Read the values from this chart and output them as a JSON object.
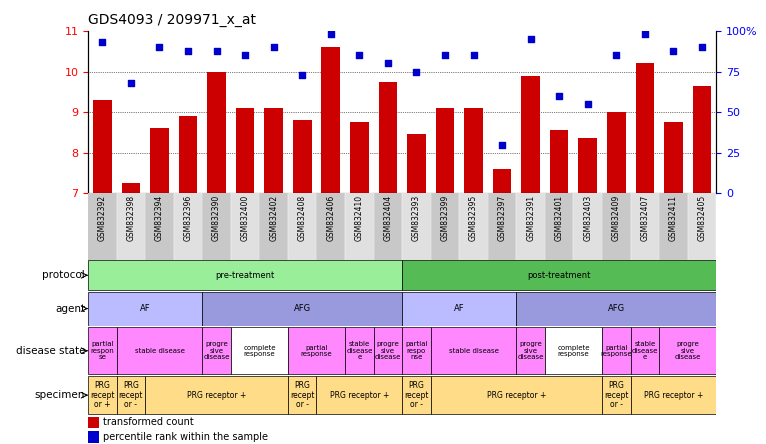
{
  "title": "GDS4093 / 209971_x_at",
  "samples": [
    "GSM832392",
    "GSM832398",
    "GSM832394",
    "GSM832396",
    "GSM832390",
    "GSM832400",
    "GSM832402",
    "GSM832408",
    "GSM832406",
    "GSM832410",
    "GSM832404",
    "GSM832393",
    "GSM832399",
    "GSM832395",
    "GSM832397",
    "GSM832391",
    "GSM832401",
    "GSM832403",
    "GSM832409",
    "GSM832407",
    "GSM832411",
    "GSM832405"
  ],
  "bar_values": [
    9.3,
    7.25,
    8.6,
    8.9,
    10.0,
    9.1,
    9.1,
    8.8,
    10.6,
    8.75,
    9.75,
    8.45,
    9.1,
    9.1,
    7.6,
    9.9,
    8.55,
    8.35,
    9.0,
    10.2,
    8.75,
    9.65
  ],
  "dot_values": [
    93,
    68,
    90,
    88,
    88,
    85,
    90,
    73,
    98,
    85,
    80,
    75,
    85,
    85,
    30,
    95,
    60,
    55,
    85,
    98,
    88,
    90
  ],
  "ylim_left": [
    7,
    11
  ],
  "ylim_right": [
    0,
    100
  ],
  "yticks_left": [
    7,
    8,
    9,
    10,
    11
  ],
  "yticks_right": [
    0,
    25,
    50,
    75,
    100
  ],
  "ytick_right_labels": [
    "0",
    "25",
    "50",
    "75",
    "100%"
  ],
  "bar_color": "#CC0000",
  "dot_color": "#0000CC",
  "bg_color": "#ffffff",
  "protocol_row": {
    "label": "protocol",
    "segments": [
      {
        "text": "pre-treatment",
        "start": 0,
        "end": 10,
        "color": "#99EE99"
      },
      {
        "text": "post-treatment",
        "start": 11,
        "end": 21,
        "color": "#55BB55"
      }
    ]
  },
  "agent_row": {
    "label": "agent",
    "segments": [
      {
        "text": "AF",
        "start": 0,
        "end": 3,
        "color": "#BBBBFF"
      },
      {
        "text": "AFG",
        "start": 4,
        "end": 10,
        "color": "#9999DD"
      },
      {
        "text": "AF",
        "start": 11,
        "end": 14,
        "color": "#BBBBFF"
      },
      {
        "text": "AFG",
        "start": 15,
        "end": 21,
        "color": "#9999DD"
      }
    ]
  },
  "disease_row": {
    "label": "disease state",
    "segments": [
      {
        "text": "partial\nrespon\nse",
        "start": 0,
        "end": 0,
        "color": "#FF88FF"
      },
      {
        "text": "stable disease",
        "start": 1,
        "end": 3,
        "color": "#FF88FF"
      },
      {
        "text": "progre\nsive\ndisease",
        "start": 4,
        "end": 4,
        "color": "#FF88FF"
      },
      {
        "text": "complete\nresponse",
        "start": 5,
        "end": 6,
        "color": "#FFFFFF"
      },
      {
        "text": "partial\nresponse",
        "start": 7,
        "end": 8,
        "color": "#FF88FF"
      },
      {
        "text": "stable\ndisease\ne",
        "start": 9,
        "end": 9,
        "color": "#FF88FF"
      },
      {
        "text": "progre\nsive\ndisease",
        "start": 10,
        "end": 10,
        "color": "#FF88FF"
      },
      {
        "text": "partial\nrespo\nnse",
        "start": 11,
        "end": 11,
        "color": "#FF88FF"
      },
      {
        "text": "stable disease",
        "start": 12,
        "end": 14,
        "color": "#FF88FF"
      },
      {
        "text": "progre\nsive\ndisease",
        "start": 15,
        "end": 15,
        "color": "#FF88FF"
      },
      {
        "text": "complete\nresponse",
        "start": 16,
        "end": 17,
        "color": "#FFFFFF"
      },
      {
        "text": "partial\nresponse",
        "start": 18,
        "end": 18,
        "color": "#FF88FF"
      },
      {
        "text": "stable\ndisease\ne",
        "start": 19,
        "end": 19,
        "color": "#FF88FF"
      },
      {
        "text": "progre\nsive\ndisease",
        "start": 20,
        "end": 21,
        "color": "#FF88FF"
      }
    ]
  },
  "specimen_row": {
    "label": "specimen",
    "segments": [
      {
        "text": "PRG\nrecept\nor +",
        "start": 0,
        "end": 0,
        "color": "#FFDD88"
      },
      {
        "text": "PRG\nrecept\nor -",
        "start": 1,
        "end": 1,
        "color": "#FFDD88"
      },
      {
        "text": "PRG receptor +",
        "start": 2,
        "end": 6,
        "color": "#FFDD88"
      },
      {
        "text": "PRG\nrecept\nor -",
        "start": 7,
        "end": 7,
        "color": "#FFDD88"
      },
      {
        "text": "PRG receptor +",
        "start": 8,
        "end": 10,
        "color": "#FFDD88"
      },
      {
        "text": "PRG\nrecept\nor -",
        "start": 11,
        "end": 11,
        "color": "#FFDD88"
      },
      {
        "text": "PRG receptor +",
        "start": 12,
        "end": 17,
        "color": "#FFDD88"
      },
      {
        "text": "PRG\nrecept\nor -",
        "start": 18,
        "end": 18,
        "color": "#FFDD88"
      },
      {
        "text": "PRG receptor +",
        "start": 19,
        "end": 21,
        "color": "#FFDD88"
      }
    ]
  }
}
